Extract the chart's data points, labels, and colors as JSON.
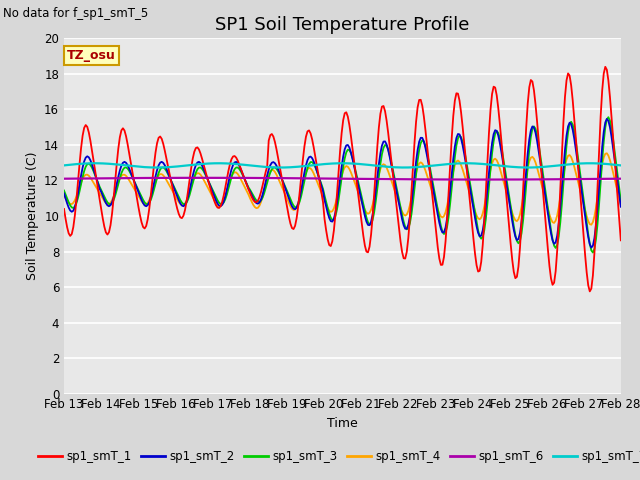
{
  "title": "SP1 Soil Temperature Profile",
  "xlabel": "Time",
  "ylabel": "Soil Temperature (C)",
  "no_data_text": "No data for f_sp1_smT_5",
  "tz_label": "TZ_osu",
  "ylim": [
    0,
    20
  ],
  "yticks": [
    0,
    2,
    4,
    6,
    8,
    10,
    12,
    14,
    16,
    18,
    20
  ],
  "xtick_labels": [
    "Feb 13",
    "Feb 14",
    "Feb 15",
    "Feb 16",
    "Feb 17",
    "Feb 18",
    "Feb 19",
    "Feb 20",
    "Feb 21",
    "Feb 22",
    "Feb 23",
    "Feb 24",
    "Feb 25",
    "Feb 26",
    "Feb 27",
    "Feb 28"
  ],
  "series_colors": {
    "sp1_smT_1": "#ff0000",
    "sp1_smT_2": "#0000cc",
    "sp1_smT_3": "#00cc00",
    "sp1_smT_4": "#ffa500",
    "sp1_smT_6": "#aa00aa",
    "sp1_smT_7": "#00cccc"
  },
  "bg_color": "#e8e8e8",
  "grid_color": "#ffffff",
  "title_fontsize": 13,
  "label_fontsize": 9,
  "tick_fontsize": 8.5
}
